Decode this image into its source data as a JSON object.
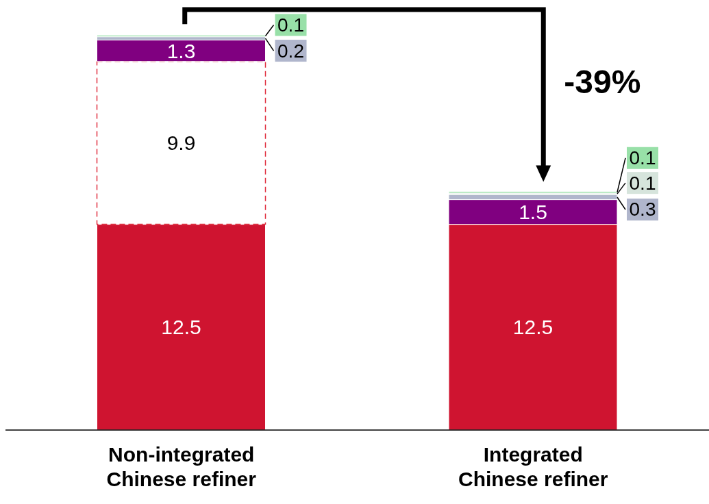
{
  "chart_data": {
    "type": "bar",
    "stacked": true,
    "categories": [
      "Non-integrated Chinese refiner",
      "Integrated Chinese refiner"
    ],
    "series": [
      {
        "color": "#cf1430",
        "values": [
          12.5,
          12.5
        ]
      },
      {
        "color": "#ffffff",
        "line_style": "dashed",
        "values": [
          9.9,
          null
        ]
      },
      {
        "color": "#800080",
        "values": [
          1.3,
          1.5
        ]
      },
      {
        "color": "#b0b6cc",
        "values": [
          0.2,
          0.3
        ]
      },
      {
        "color": "#d6e4dc",
        "values": [
          null,
          0.1
        ]
      },
      {
        "color": "#98e0a8",
        "values": [
          0.1,
          0.1
        ]
      }
    ],
    "data_labels": true,
    "annotations": [
      "-39%"
    ]
  }
}
